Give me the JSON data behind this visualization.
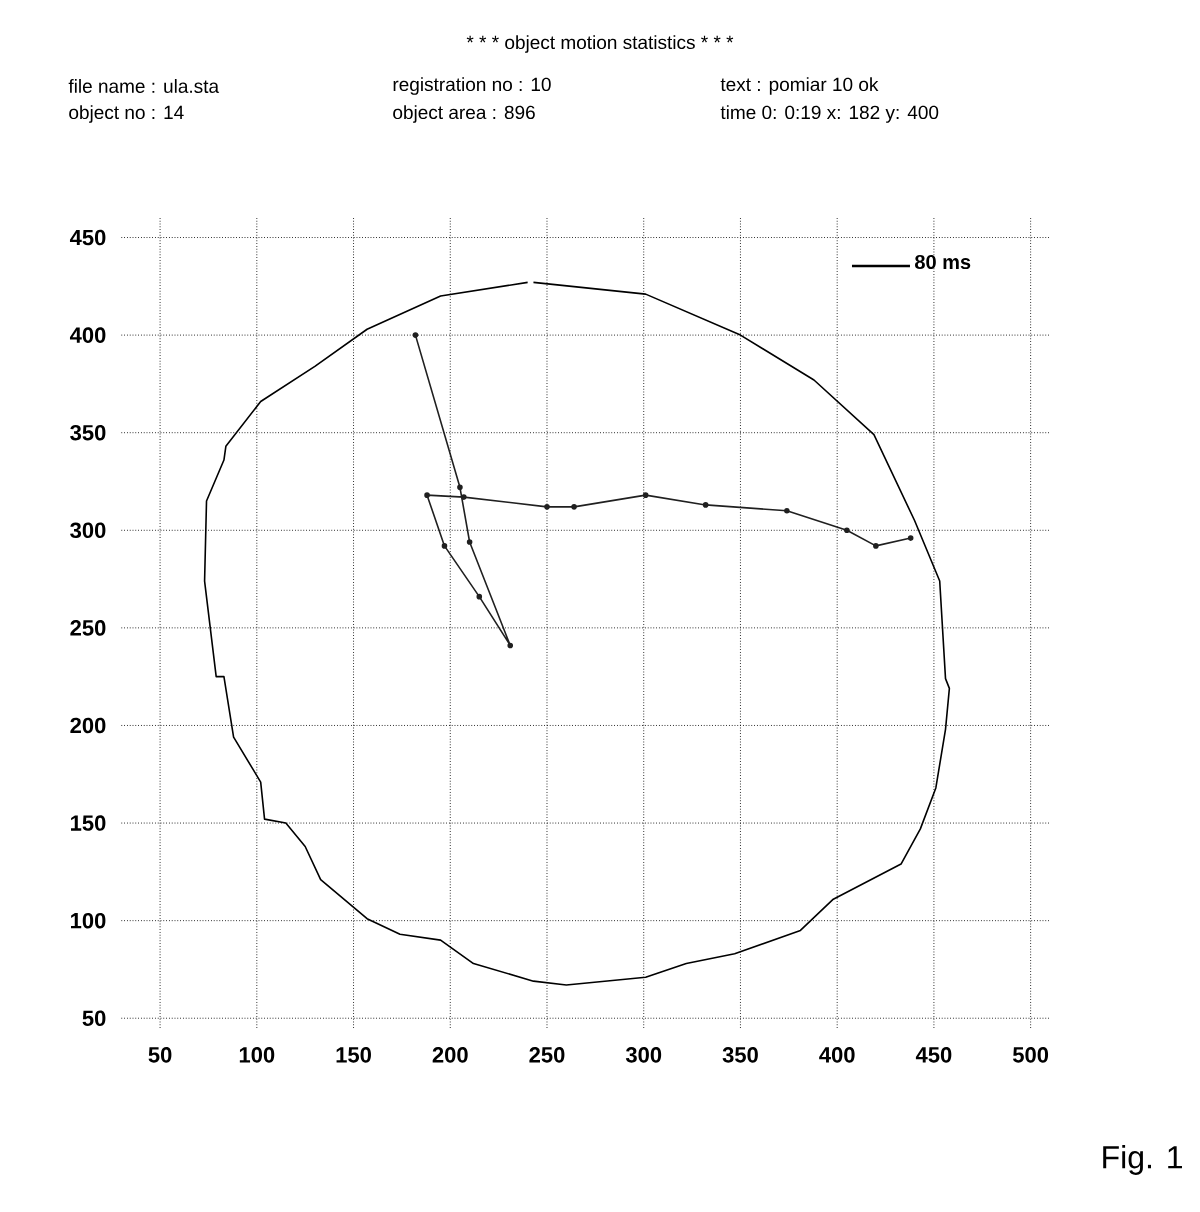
{
  "chart_data": {
    "type": "line",
    "title": "* * * object motion statistics * * *",
    "annotations": [
      "file name : ula.sta",
      "object no : 14",
      "registration no : 10",
      "object area : 896",
      "text : pomiar 10 ok",
      "time 0: 0:19 x: 182 y: 400",
      "80 ms",
      "Fig. 1"
    ],
    "xlim": [
      30,
      510
    ],
    "ylim": [
      45,
      460
    ],
    "xticks": [
      50,
      100,
      150,
      200,
      250,
      300,
      350,
      400,
      450,
      500
    ],
    "yticks": [
      50,
      100,
      150,
      200,
      250,
      300,
      350,
      400,
      450
    ],
    "grid": true,
    "series": [
      {
        "color": "#000000",
        "marker": "none",
        "x": [
          243,
          301,
          350,
          388,
          419,
          440,
          453,
          456,
          458,
          456,
          451,
          443,
          433,
          398,
          381,
          347,
          322,
          301,
          260,
          243,
          212,
          195,
          174,
          157,
          133,
          125,
          115,
          104,
          102,
          88,
          83,
          79,
          73,
          74,
          83,
          84,
          102,
          130,
          157,
          195,
          240
        ],
        "values": [
          427,
          421,
          400,
          377,
          349,
          305,
          274,
          224,
          219,
          198,
          168,
          147,
          129,
          111,
          95,
          83,
          78,
          71,
          67,
          69,
          78,
          90,
          93,
          101,
          121,
          138,
          150,
          152,
          171,
          194,
          225,
          225,
          274,
          315,
          336,
          343,
          366,
          384,
          403,
          420,
          427
        ]
      },
      {
        "color": "#202020",
        "marker": "circle",
        "x": [
          182,
          205,
          210,
          231,
          215,
          197,
          188,
          207,
          250,
          264,
          301,
          332,
          374,
          405,
          420,
          438
        ],
        "values": [
          400,
          322,
          294,
          241,
          266,
          292,
          318,
          317,
          312,
          312,
          318,
          313,
          310,
          300,
          292,
          296
        ]
      }
    ]
  }
}
